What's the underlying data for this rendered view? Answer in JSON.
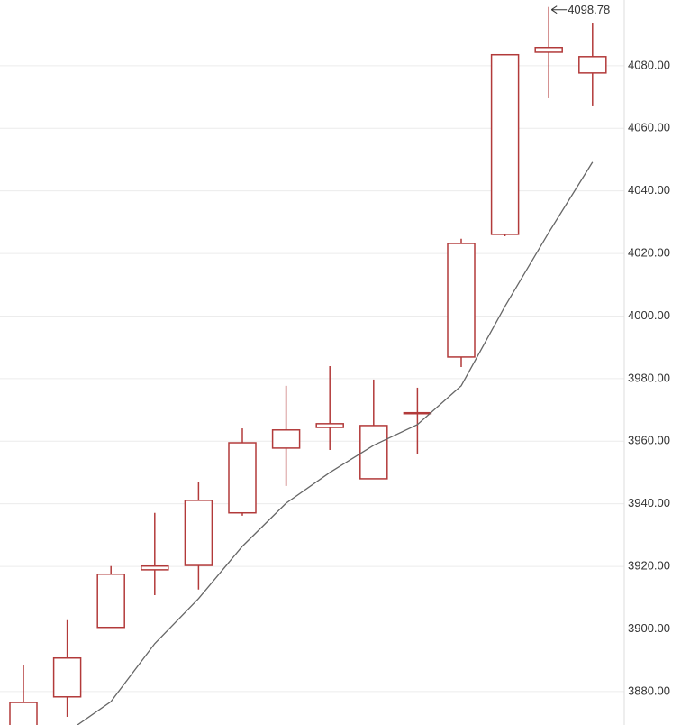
{
  "chart_data": {
    "type": "candlestick",
    "open": [
      3866,
      3878.3,
      3900.5,
      3918.9,
      3920.3,
      3937.1,
      3957.8,
      3964.4,
      3948.0,
      3968.8,
      3986.9,
      4026.1,
      4084.3,
      4077.7
    ],
    "high": [
      3888.4,
      3902.8,
      3920.1,
      3937.1,
      3946.9,
      3964.1,
      3977.7,
      3984.0,
      3979.7,
      3977.1,
      4024.7,
      4083.5,
      4098.78,
      4093.5
    ],
    "low": [
      3860,
      3871.9,
      3900.5,
      3910.8,
      3912.6,
      3936.2,
      3945.7,
      3957.2,
      3948.0,
      3955.8,
      3983.7,
      4025.5,
      4069.6,
      4067.3
    ],
    "close": [
      3876.5,
      3890.7,
      3917.5,
      3920.1,
      3941.1,
      3959.5,
      3963.6,
      3965.6,
      3965.0,
      3969.1,
      4023.2,
      4083.5,
      4085.8,
      4082.9
    ],
    "color": "#b23a3a",
    "ma": {
      "color": "#666666",
      "values": [
        null,
        3867,
        3876.8,
        3895.3,
        3909.7,
        3926.4,
        3940.2,
        3950.0,
        3958.7,
        3965.3,
        3977.7,
        4003.1,
        4026.7,
        4049.2
      ]
    },
    "ylim": [
      3869.3,
      4101
    ],
    "yticks": [
      {
        "value": 3880,
        "label": "3880.00"
      },
      {
        "value": 3900,
        "label": "3900.00"
      },
      {
        "value": 3920,
        "label": "3920.00"
      },
      {
        "value": 3940,
        "label": "3940.00"
      },
      {
        "value": 3960,
        "label": "3960.00"
      },
      {
        "value": 3980,
        "label": "3980.00"
      },
      {
        "value": 4000,
        "label": "4000.00"
      },
      {
        "value": 4020,
        "label": "4020.00"
      },
      {
        "value": 4040,
        "label": "4040.00"
      },
      {
        "value": 4060,
        "label": "4060.00"
      },
      {
        "value": 4080,
        "label": "4080.00"
      }
    ],
    "grid": true
  }
}
